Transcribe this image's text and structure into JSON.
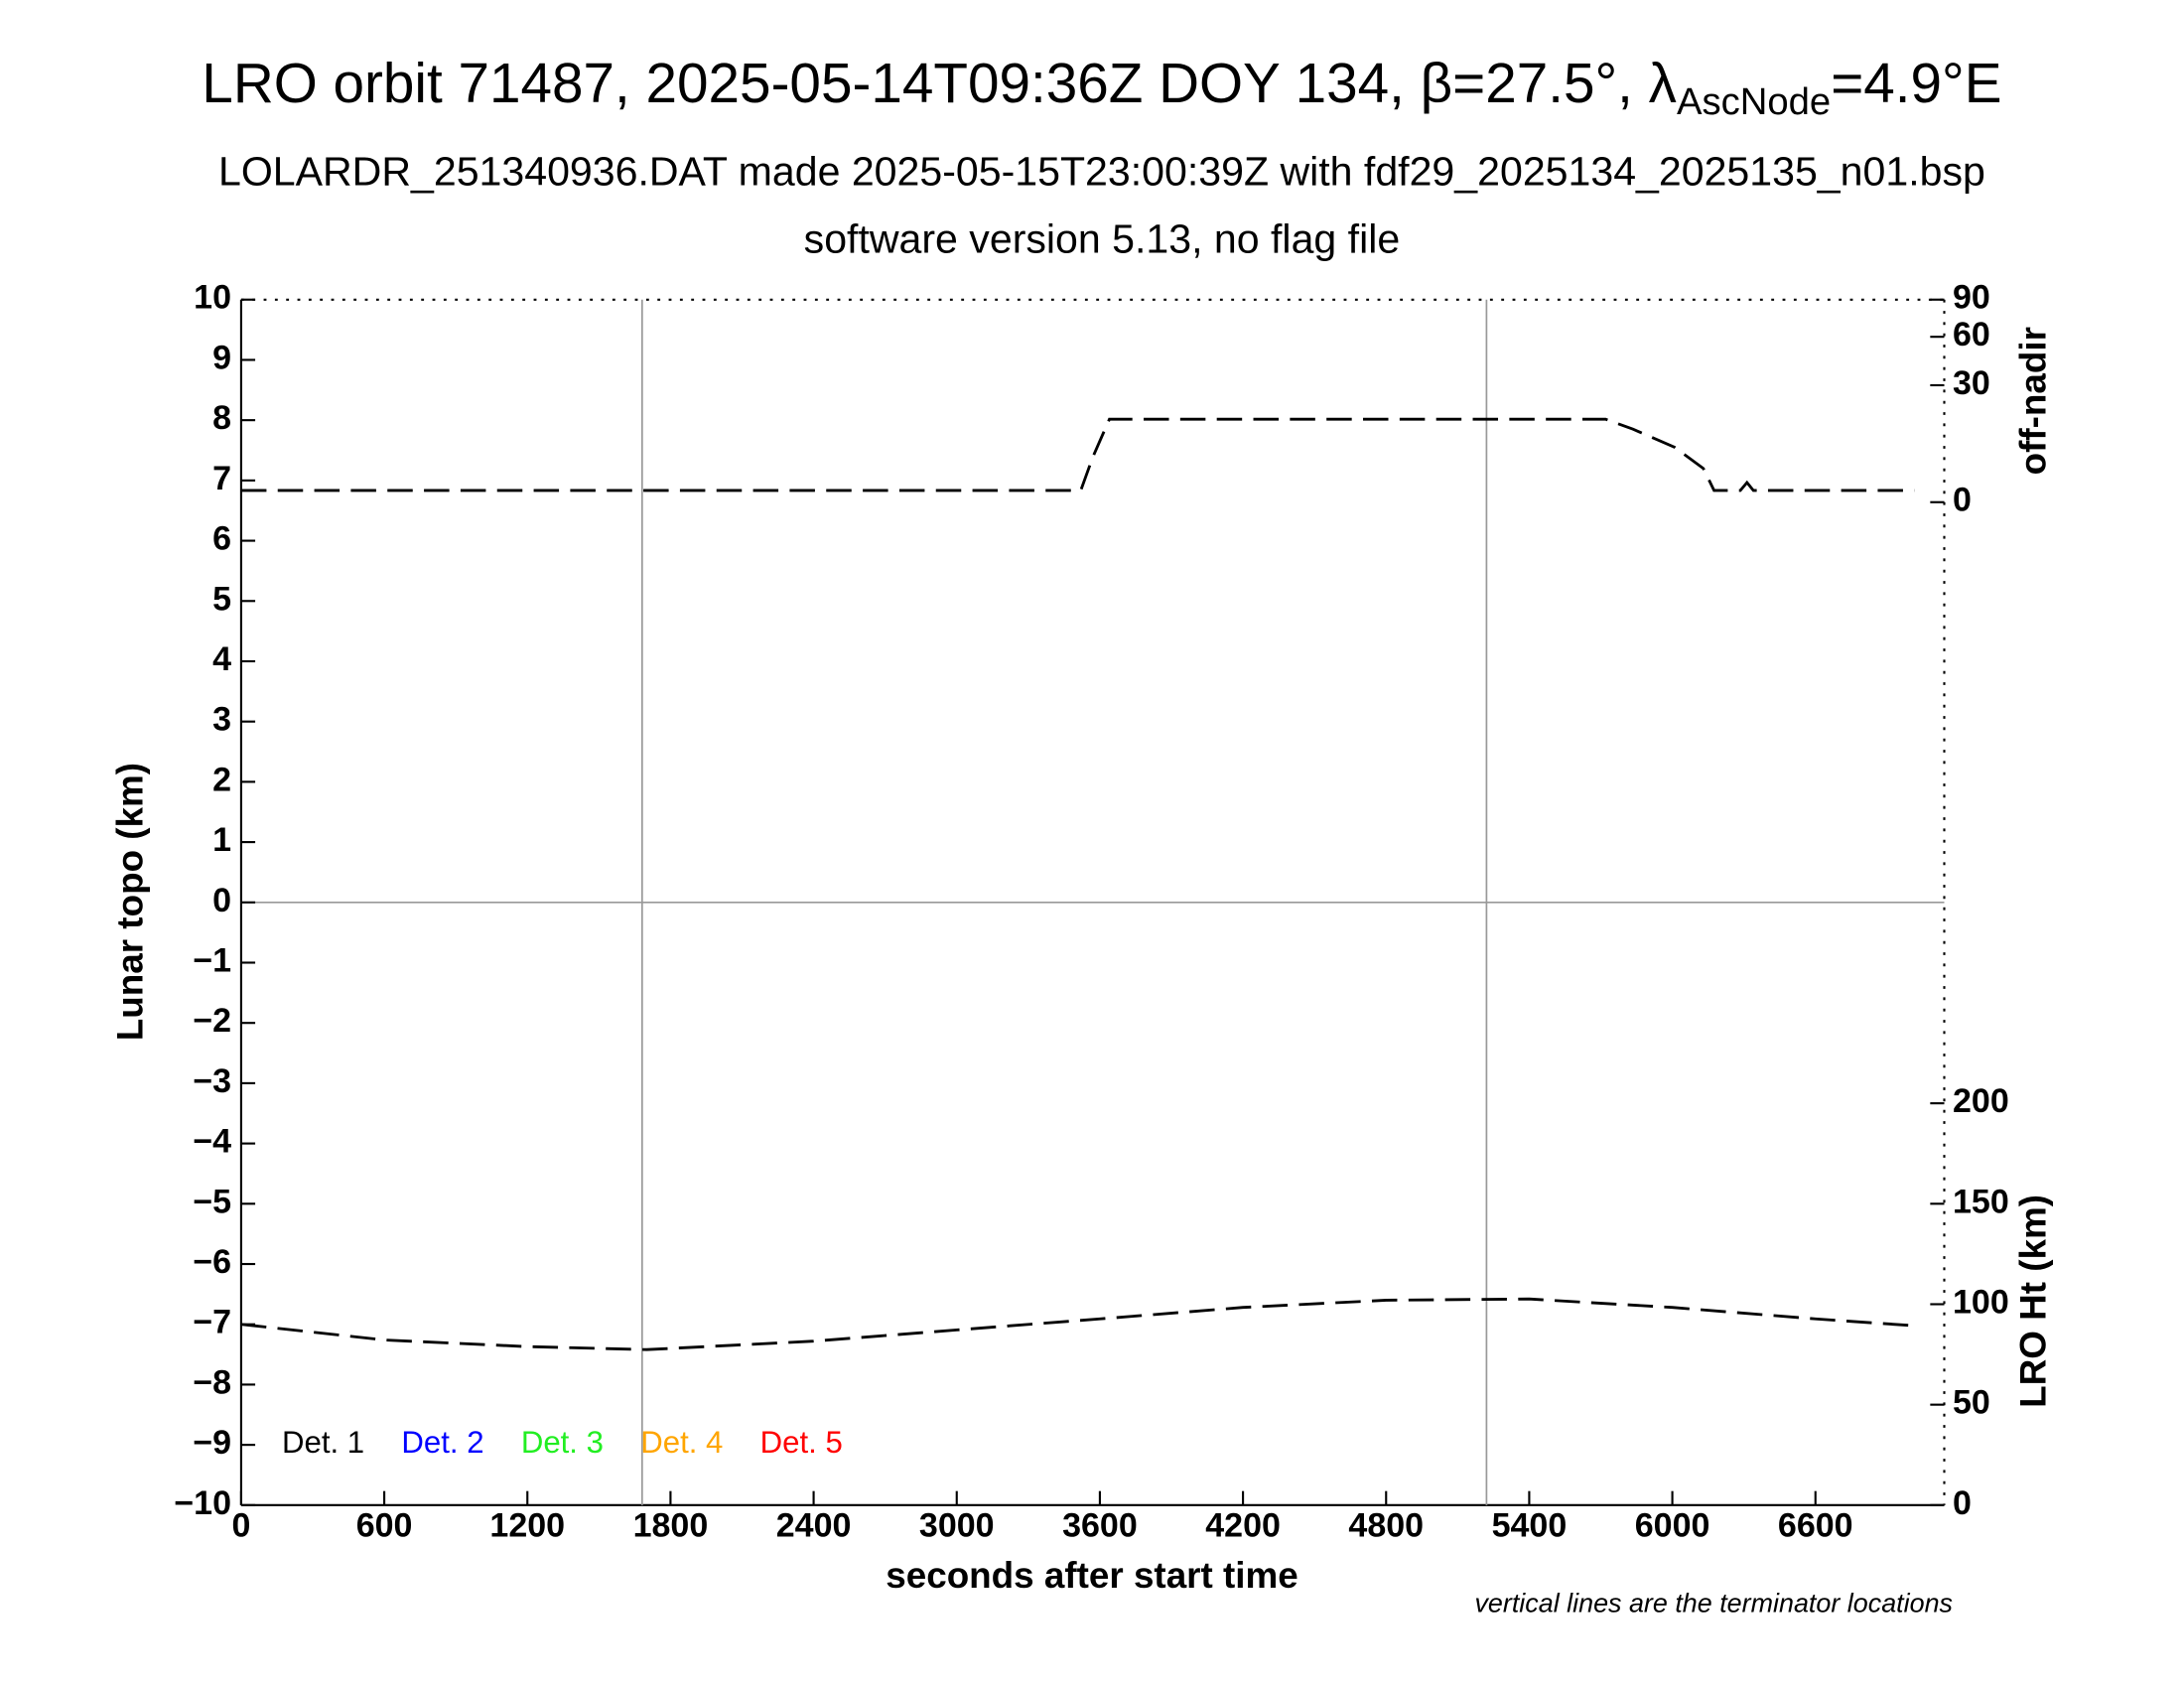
{
  "chart_data": {
    "type": "line",
    "title": [
      "LRO orbit 71487, 2025-05-14T09:36Z DOY 134, β=27.5°, λ",
      "AscNode",
      "=4.9°E"
    ],
    "subtitle": [
      "LOLARDR_251340936.DAT made 2025-05-15T23:00:39Z with fdf29_2025134_2025135_n01.bsp",
      "software version 5.13, no flag file"
    ],
    "xlabel": "seconds after start time",
    "ylabel": "Lunar topo (km)",
    "y2label": "off-nadir",
    "y3label": "LRO Ht (km)",
    "note": "vertical lines are the terminator locations",
    "xlim": [
      0,
      7140
    ],
    "xticks": [
      0,
      600,
      1200,
      1800,
      2400,
      3000,
      3600,
      4200,
      4800,
      5400,
      6000,
      6600
    ],
    "ylim": [
      -10,
      10
    ],
    "yticks": [
      {
        "value": -10,
        "label": "−10"
      },
      {
        "value": -9,
        "label": "−9"
      },
      {
        "value": -8,
        "label": "−8"
      },
      {
        "value": -7,
        "label": "−7"
      },
      {
        "value": -6,
        "label": "−6"
      },
      {
        "value": -5,
        "label": "−5"
      },
      {
        "value": -4,
        "label": "−4"
      },
      {
        "value": -3,
        "label": "−3"
      },
      {
        "value": -2,
        "label": "−2"
      },
      {
        "value": -1,
        "label": "−1"
      },
      0,
      1,
      2,
      3,
      4,
      5,
      6,
      7,
      8,
      9,
      10
    ],
    "y2lim": [
      0,
      90
    ],
    "y2scale": "sqrt",
    "y2ticks": [
      0,
      30,
      60,
      90
    ],
    "y3lim": [
      0,
      600
    ],
    "y3ticks": [
      0,
      50,
      100,
      150,
      200
    ],
    "terminators": [
      1681,
      5221
    ],
    "hlines": [
      0
    ],
    "legend": [
      {
        "name": "Det. 1",
        "color": "#000000"
      },
      {
        "name": "Det. 2",
        "color": "#0000ff"
      },
      {
        "name": "Det. 3",
        "color": "#22ee22"
      },
      {
        "name": "Det. 4",
        "color": "#ffa500"
      },
      {
        "name": "Det. 5",
        "color": "#ff0000"
      }
    ],
    "series": [
      {
        "axis": "y2",
        "color": "#000000",
        "dashed": true,
        "x": [
          0,
          3520,
          3570,
          3640,
          5720,
          5835,
          6010,
          6130,
          6175,
          6285,
          6313,
          6340,
          7015
        ],
        "values": [
          0.3,
          0.3,
          4.4,
          15.1,
          15.1,
          11.7,
          6.6,
          2.5,
          0.3,
          0.3,
          0.85,
          0.3,
          0.3
        ]
      },
      {
        "axis": "y3",
        "color": "#000000",
        "dashed": true,
        "x": [
          0,
          600,
          1200,
          1700,
          2400,
          3000,
          3600,
          4200,
          4800,
          5400,
          6000,
          6600,
          7015
        ],
        "values": [
          90,
          82.2,
          78.9,
          77.4,
          81.6,
          87.2,
          92.7,
          98.4,
          102,
          102.6,
          98.4,
          92.7,
          89.3
        ]
      }
    ]
  }
}
